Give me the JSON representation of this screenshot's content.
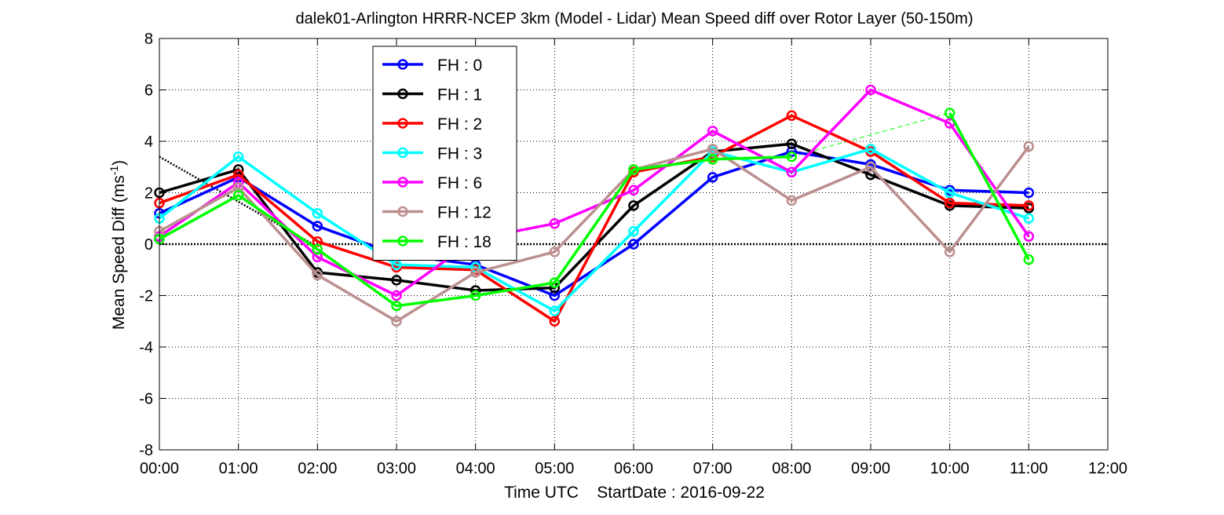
{
  "chart_data": {
    "type": "line",
    "title": "dalek01-Arlington HRRR-NCEP 3km (Model - Lidar) Mean Speed diff over Rotor Layer (50-150m)",
    "xlabel_main": "Time UTC",
    "xlabel_date": "StartDate : 2016-09-22",
    "ylabel_main": "Mean Speed Diff (ms",
    "ylabel_sup": "-1",
    "ylabel_close": ")",
    "x_tick_labels": [
      "00:00",
      "01:00",
      "02:00",
      "03:00",
      "04:00",
      "05:00",
      "06:00",
      "07:00",
      "08:00",
      "09:00",
      "10:00",
      "11:00",
      "12:00"
    ],
    "y_tick_labels": [
      "8",
      "6",
      "4",
      "2",
      "0",
      "-2",
      "-4",
      "-6",
      "-8"
    ],
    "xlim": [
      0,
      12
    ],
    "ylim": [
      -8,
      8
    ],
    "grid": true,
    "legend_position": "upper-left-center",
    "x": [
      0,
      1,
      2,
      3,
      4,
      5,
      6,
      7,
      8,
      9,
      10,
      11
    ],
    "series": [
      {
        "name": "FH : 0",
        "color": "#0000ff",
        "values": [
          1.2,
          2.6,
          0.7,
          -0.4,
          -0.8,
          -2.0,
          0.0,
          2.6,
          3.6,
          3.1,
          2.1,
          2.0
        ]
      },
      {
        "name": "FH : 1",
        "color": "#000000",
        "values": [
          2.0,
          2.9,
          -1.1,
          -1.4,
          -1.8,
          -1.7,
          1.5,
          3.6,
          3.9,
          2.7,
          1.5,
          1.4
        ]
      },
      {
        "name": "FH : 2",
        "color": "#ff0000",
        "values": [
          1.6,
          2.7,
          0.1,
          -0.9,
          -1.0,
          -3.0,
          2.8,
          3.4,
          5.0,
          3.6,
          1.6,
          1.5
        ]
      },
      {
        "name": "FH : 3",
        "color": "#00ffff",
        "values": [
          1.0,
          3.4,
          1.2,
          -0.8,
          -0.9,
          -2.6,
          0.5,
          3.6,
          2.8,
          3.7,
          2.0,
          1.0
        ]
      },
      {
        "name": "FH : 6",
        "color": "#ff00ff",
        "values": [
          0.3,
          2.4,
          -0.5,
          -2.0,
          0.2,
          0.8,
          2.1,
          4.4,
          2.8,
          6.0,
          4.7,
          0.3
        ]
      },
      {
        "name": "FH : 12",
        "color": "#bc8f8f",
        "values": [
          0.5,
          2.2,
          -1.2,
          -3.0,
          -1.1,
          -0.3,
          2.9,
          3.7,
          1.7,
          3.0,
          -0.3,
          3.8
        ]
      },
      {
        "name": "FH : 18",
        "color": "#00ff00",
        "values": [
          0.2,
          1.9,
          -0.2,
          -2.4,
          -2.0,
          -1.5,
          2.9,
          3.3,
          3.4,
          null,
          5.1,
          -0.6
        ]
      }
    ],
    "reference_lines": [
      {
        "style": "dotted",
        "color": "#000000",
        "x": [
          0,
          12
        ],
        "y": [
          0,
          0
        ]
      },
      {
        "style": "dotted",
        "color": "#000000",
        "x": [
          0,
          2
        ],
        "y": [
          3.4,
          -0.1
        ]
      },
      {
        "style": "dashed",
        "color": "#00ff00",
        "x": [
          8,
          10
        ],
        "y": [
          3.4,
          5.1
        ]
      }
    ]
  }
}
